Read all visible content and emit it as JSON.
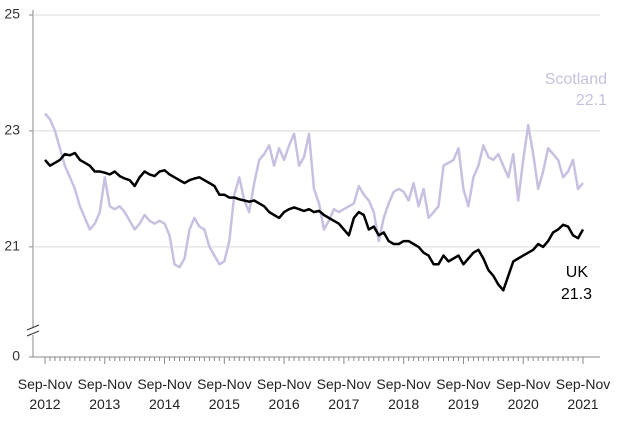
{
  "chart_data": {
    "type": "line",
    "categories": [
      "Sep-Nov 2012",
      null,
      null,
      null,
      null,
      null,
      null,
      null,
      null,
      null,
      null,
      null,
      "Sep-Nov 2013",
      null,
      null,
      null,
      null,
      null,
      null,
      null,
      null,
      null,
      null,
      null,
      "Sep-Nov 2014",
      null,
      null,
      null,
      null,
      null,
      null,
      null,
      null,
      null,
      null,
      null,
      "Sep-Nov 2015",
      null,
      null,
      null,
      null,
      null,
      null,
      null,
      null,
      null,
      null,
      null,
      "Sep-Nov 2016",
      null,
      null,
      null,
      null,
      null,
      null,
      null,
      null,
      null,
      null,
      null,
      "Sep-Nov 2017",
      null,
      null,
      null,
      null,
      null,
      null,
      null,
      null,
      null,
      null,
      null,
      "Sep-Nov 2018",
      null,
      null,
      null,
      null,
      null,
      null,
      null,
      null,
      null,
      null,
      null,
      "Sep-Nov 2019",
      null,
      null,
      null,
      null,
      null,
      null,
      null,
      null,
      null,
      null,
      null,
      "Sep-Nov 2020",
      null,
      null,
      null,
      null,
      null,
      null,
      null,
      null,
      null,
      null,
      null,
      "Sep-Nov 2021"
    ],
    "series": [
      {
        "name": "Scotland",
        "color": "#c9bfe0",
        "values": [
          23.3,
          23.2,
          23.0,
          22.7,
          22.4,
          22.2,
          22.0,
          21.7,
          21.5,
          21.3,
          21.4,
          21.6,
          22.2,
          21.7,
          21.65,
          21.7,
          21.6,
          21.45,
          21.3,
          21.4,
          21.55,
          21.45,
          21.4,
          21.45,
          21.4,
          21.2,
          20.7,
          20.65,
          20.8,
          21.3,
          21.5,
          21.35,
          21.3,
          21.0,
          20.85,
          20.7,
          20.75,
          21.1,
          21.9,
          22.2,
          21.8,
          21.6,
          22.1,
          22.5,
          22.6,
          22.75,
          22.4,
          22.7,
          22.5,
          22.75,
          22.95,
          22.4,
          22.55,
          22.95,
          22.0,
          21.75,
          21.3,
          21.45,
          21.65,
          21.6,
          21.65,
          21.7,
          21.75,
          22.05,
          21.9,
          21.8,
          21.6,
          21.1,
          21.5,
          21.75,
          21.95,
          22.0,
          21.95,
          21.8,
          22.1,
          21.7,
          22.0,
          21.5,
          21.6,
          21.7,
          22.4,
          22.45,
          22.5,
          22.7,
          22.0,
          21.7,
          22.2,
          22.4,
          22.75,
          22.55,
          22.5,
          22.6,
          22.4,
          22.2,
          22.6,
          21.8,
          22.5,
          23.1,
          22.6,
          22.0,
          22.3,
          22.7,
          22.6,
          22.5,
          22.2,
          22.3,
          22.5,
          22.0,
          22.1
        ]
      },
      {
        "name": "UK",
        "color": "#000000",
        "values": [
          22.5,
          22.4,
          22.45,
          22.5,
          22.6,
          22.58,
          22.62,
          22.5,
          22.45,
          22.4,
          22.3,
          22.3,
          22.28,
          22.25,
          22.3,
          22.22,
          22.18,
          22.15,
          22.05,
          22.2,
          22.3,
          22.25,
          22.22,
          22.3,
          22.32,
          22.25,
          22.2,
          22.15,
          22.1,
          22.15,
          22.18,
          22.2,
          22.15,
          22.1,
          22.05,
          21.9,
          21.9,
          21.85,
          21.85,
          21.82,
          21.8,
          21.78,
          21.8,
          21.75,
          21.7,
          21.6,
          21.55,
          21.5,
          21.6,
          21.65,
          21.68,
          21.65,
          21.62,
          21.65,
          21.6,
          21.62,
          21.55,
          21.5,
          21.45,
          21.4,
          21.3,
          21.2,
          21.5,
          21.6,
          21.55,
          21.3,
          21.35,
          21.2,
          21.25,
          21.1,
          21.05,
          21.05,
          21.1,
          21.1,
          21.05,
          21.0,
          20.9,
          20.85,
          20.7,
          20.7,
          20.85,
          20.75,
          20.8,
          20.85,
          20.7,
          20.8,
          20.9,
          20.95,
          20.8,
          20.6,
          20.5,
          20.35,
          20.25,
          20.5,
          20.75,
          20.8,
          20.85,
          20.9,
          20.95,
          21.05,
          21.0,
          21.1,
          21.25,
          21.3,
          21.38,
          21.35,
          21.2,
          21.15,
          21.3
        ]
      }
    ],
    "ylim": [
      0,
      25
    ],
    "y_break": [
      0,
      19.1
    ],
    "yticks": [
      0,
      21,
      23,
      25
    ],
    "grid": true
  }
}
